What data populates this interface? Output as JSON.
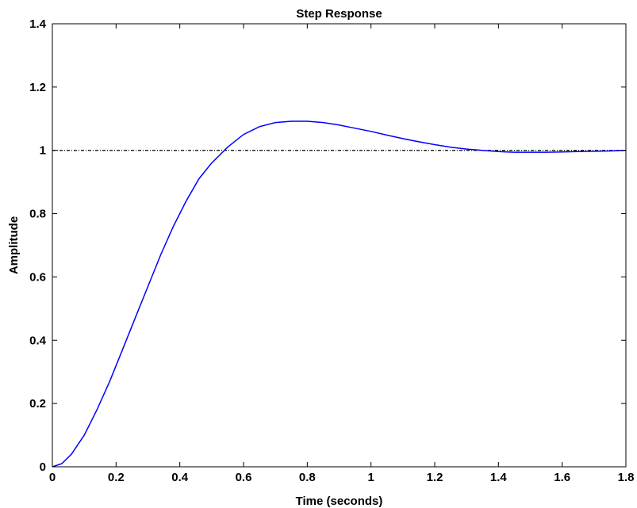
{
  "chart_data": {
    "type": "line",
    "title": "Step Response",
    "xlabel": "Time (seconds)",
    "ylabel": "Amplitude",
    "xlim": [
      0,
      1.8
    ],
    "ylim": [
      0,
      1.4
    ],
    "xticks": [
      0,
      0.2,
      0.4,
      0.6,
      0.8,
      1,
      1.2,
      1.4,
      1.6,
      1.8
    ],
    "xtick_labels": [
      "0",
      "0.2",
      "0.4",
      "0.6",
      "0.8",
      "1",
      "1.2",
      "1.4",
      "1.6",
      "1.8"
    ],
    "yticks": [
      0,
      0.2,
      0.4,
      0.6,
      0.8,
      1,
      1.2,
      1.4
    ],
    "ytick_labels": [
      "0",
      "0.2",
      "0.4",
      "0.6",
      "0.8",
      "1",
      "1.2",
      "1.4"
    ],
    "grid": false,
    "series": [
      {
        "color": "#0000ff",
        "x": [
          0,
          0.03,
          0.06,
          0.1,
          0.14,
          0.18,
          0.22,
          0.26,
          0.3,
          0.34,
          0.38,
          0.42,
          0.46,
          0.5,
          0.55,
          0.6,
          0.65,
          0.7,
          0.75,
          0.8,
          0.85,
          0.9,
          0.95,
          1.0,
          1.05,
          1.1,
          1.15,
          1.2,
          1.25,
          1.3,
          1.35,
          1.4,
          1.45,
          1.5,
          1.55,
          1.6,
          1.65,
          1.7,
          1.75,
          1.8
        ],
        "y": [
          0,
          0.01,
          0.04,
          0.1,
          0.18,
          0.27,
          0.37,
          0.47,
          0.57,
          0.67,
          0.76,
          0.84,
          0.91,
          0.96,
          1.01,
          1.05,
          1.075,
          1.088,
          1.092,
          1.092,
          1.088,
          1.08,
          1.07,
          1.06,
          1.048,
          1.037,
          1.027,
          1.018,
          1.01,
          1.004,
          1.0,
          0.996,
          0.994,
          0.994,
          0.994,
          0.995,
          0.996,
          0.997,
          0.998,
          1.0
        ]
      }
    ],
    "reference_line": {
      "y": 1,
      "style": "dash-dot",
      "color": "#000000"
    }
  }
}
